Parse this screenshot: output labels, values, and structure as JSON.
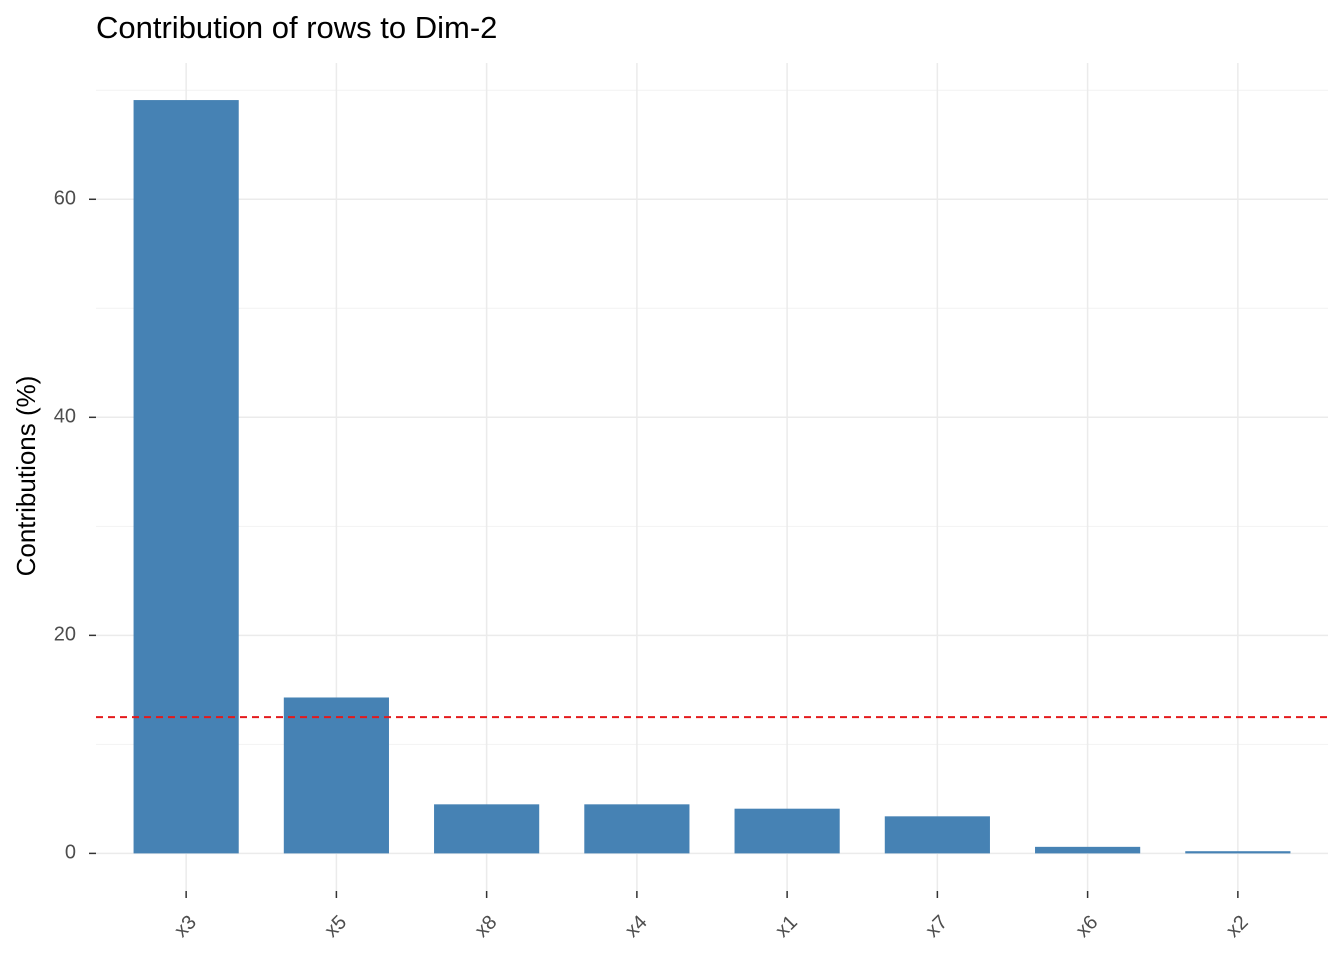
{
  "chart_data": {
    "type": "bar",
    "title": "Contribution of rows to Dim-2",
    "y_label": "Contributions (%)",
    "categories": [
      "x3",
      "x5",
      "x8",
      "x4",
      "x1",
      "x7",
      "x6",
      "x2"
    ],
    "values": [
      69.1,
      14.3,
      4.5,
      4.5,
      4.1,
      3.4,
      0.6,
      0.2
    ],
    "color": "#4682b4",
    "ylim": [
      -3.45,
      72.5
    ],
    "yticks": [
      0,
      20,
      40,
      60
    ],
    "minor_yticks": [
      10,
      30,
      50,
      70
    ],
    "grid": true,
    "reference_line": 12.5,
    "reference_line_color": "#e41a1c"
  }
}
